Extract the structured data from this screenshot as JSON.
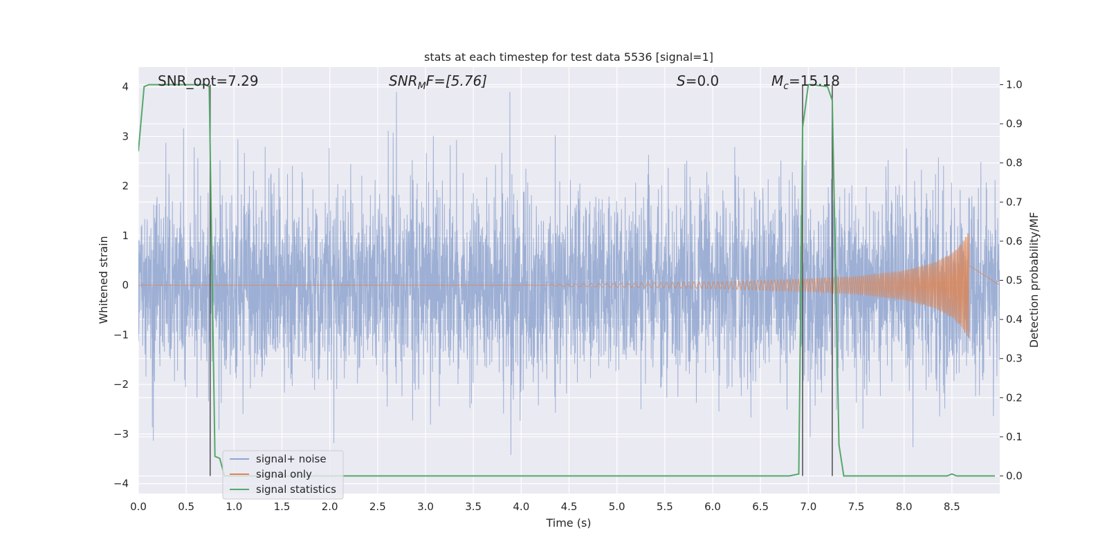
{
  "chart_data": {
    "type": "line",
    "title": "stats at each timestep for test data 5536 [signal=1]",
    "xlabel": "Time (s)",
    "ylabel": "Whitened strain",
    "ylabel_right": "Detection probability/MF",
    "xlim": [
      0.0,
      9.0
    ],
    "ylim": [
      -4.2,
      4.4
    ],
    "ylim_right": [
      -0.045,
      1.045
    ],
    "x_ticks": [
      "0.0",
      "0.5",
      "1.0",
      "1.5",
      "2.0",
      "2.5",
      "3.0",
      "3.5",
      "4.0",
      "4.5",
      "5.0",
      "5.5",
      "6.0",
      "6.5",
      "7.0",
      "7.5",
      "8.0",
      "8.5"
    ],
    "y_ticks": [
      "4",
      "3",
      "2",
      "1",
      "0",
      "−1",
      "−2",
      "−3",
      "−4"
    ],
    "y_ticks_right": [
      "1.0",
      "0.9",
      "0.8",
      "0.7",
      "0.6",
      "0.5",
      "0.4",
      "0.3",
      "0.2",
      "0.1",
      "0.0"
    ],
    "grid": true,
    "legend_position": "lower-left",
    "annotations": {
      "snr_opt": "SNR_opt=7.29",
      "snr_mf_main": "SNR",
      "snr_mf_sub": "M",
      "snr_mf_rest": "F=[5.76]",
      "s_main": "S",
      "s_rest": "=0.0",
      "mc_main": "M",
      "mc_sub": "c",
      "mc_rest": "=15.18"
    },
    "series": [
      {
        "name": "signal+ noise",
        "color": "#8fa5cf",
        "description_values": "noise-like strain, mostly within ±2, spikes to about ±4",
        "amplitude_envelope": [
          [
            0.0,
            1.6
          ],
          [
            9.0,
            1.6
          ]
        ]
      },
      {
        "name": "signal only",
        "color": "#dd8452",
        "chirp_start": 4.3,
        "chirp_end": 8.68,
        "amplitude_envelope": [
          [
            4.3,
            0.02
          ],
          [
            5.0,
            0.04
          ],
          [
            6.0,
            0.07
          ],
          [
            7.0,
            0.13
          ],
          [
            7.5,
            0.18
          ],
          [
            8.0,
            0.3
          ],
          [
            8.3,
            0.45
          ],
          [
            8.5,
            0.65
          ],
          [
            8.6,
            0.85
          ],
          [
            8.68,
            1.1
          ]
        ]
      },
      {
        "name": "signal statistics",
        "color": "#55a868",
        "x": [
          0.0,
          0.06,
          0.11,
          0.2,
          0.3,
          0.4,
          0.5,
          0.6,
          0.7,
          0.74,
          0.8,
          0.85,
          0.9,
          1.0,
          2.0,
          3.0,
          4.0,
          5.0,
          6.0,
          6.8,
          6.9,
          6.94,
          7.0,
          7.05,
          7.1,
          7.2,
          7.25,
          7.32,
          7.37,
          7.4,
          8.0,
          8.45,
          8.5,
          8.55,
          8.6,
          8.7,
          8.95
        ],
        "y": [
          0.83,
          0.995,
          1.0,
          1.0,
          1.0,
          1.0,
          1.0,
          1.0,
          1.0,
          0.995,
          0.05,
          0.045,
          0.0,
          0.0,
          0.0,
          0.0,
          0.0,
          0.0,
          0.0,
          0.0,
          0.005,
          0.89,
          1.0,
          1.0,
          0.998,
          0.995,
          0.96,
          0.08,
          0.0,
          0.0,
          0.0,
          0.0,
          0.005,
          0.0,
          0.0,
          0.0,
          0.0
        ]
      }
    ],
    "vertical_markers": [
      0.75,
      6.94,
      7.25
    ],
    "marker_color": "#555555"
  }
}
